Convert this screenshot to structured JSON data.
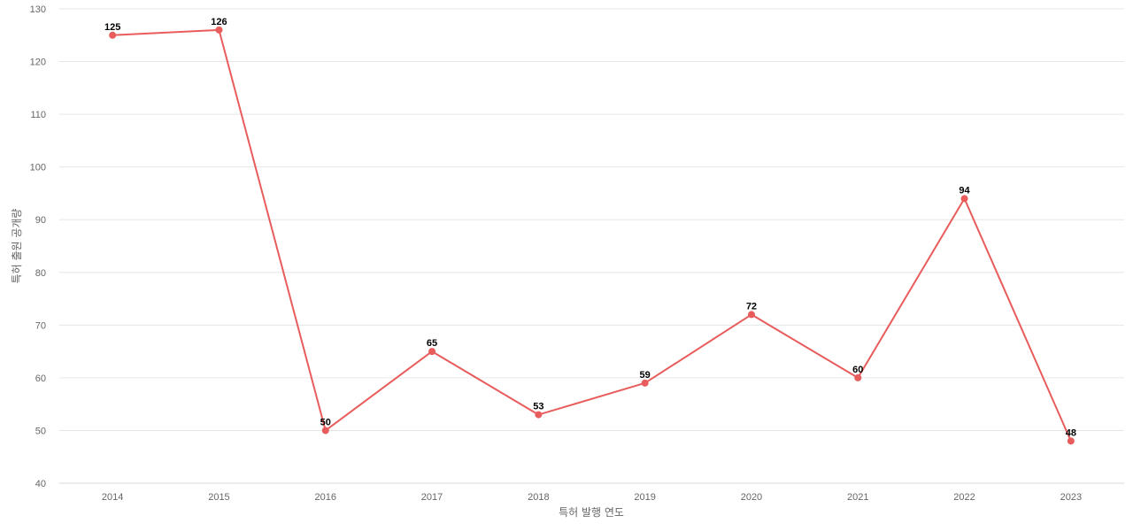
{
  "chart_data": {
    "type": "line",
    "categories": [
      "2014",
      "2015",
      "2016",
      "2017",
      "2018",
      "2019",
      "2020",
      "2021",
      "2022",
      "2023"
    ],
    "series": [
      {
        "values": [
          125,
          126,
          50,
          65,
          53,
          59,
          72,
          60,
          94,
          48
        ]
      }
    ],
    "xlabel": "특허 발행 연도",
    "ylabel": "특허 출원 공개량",
    "ylim": [
      40,
      130
    ],
    "yticks": [
      40,
      50,
      60,
      70,
      80,
      90,
      100,
      110,
      120,
      130
    ],
    "grid": true,
    "data_labels": true,
    "line_color": "#e85c5c"
  }
}
